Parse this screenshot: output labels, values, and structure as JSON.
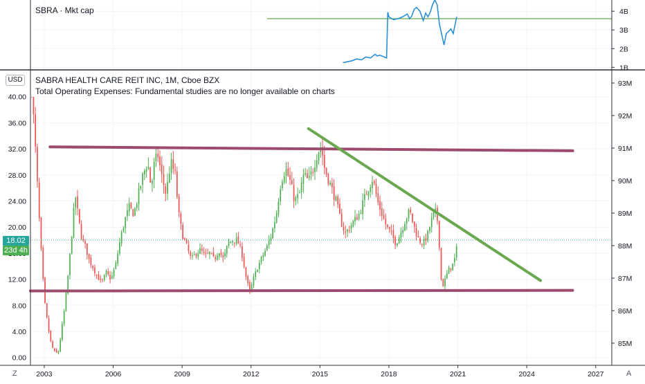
{
  "colors": {
    "up": "#26a69a",
    "up_fill": "#4caf50",
    "down": "#ef5350",
    "grid": "#f0f3fa",
    "axis_text": "#131722",
    "trend_horizontal": "#9c4a6e",
    "trend_diagonal": "#6aa84f",
    "mcap_line": "#2a8fd6",
    "mcap_hline": "#6aa84f",
    "badge_price": "#26a69a",
    "badge_countdown": "#4caf50"
  },
  "top_pane": {
    "title": "SBRA · Mkt cap",
    "y_tick_labels": [
      "4B",
      "3B",
      "2B",
      "1B"
    ]
  },
  "main_pane": {
    "title_line1": "SABRA HEALTH CARE REIT INC, 1M, Cboe BZX",
    "title_line2": "Total Operating Expenses: Fundamental studies are no longer available on charts",
    "currency": "USD",
    "last_price": "18.02",
    "countdown": "23d 4h",
    "corner_left": "Z",
    "corner_right": "A"
  },
  "chart_data": [
    {
      "type": "line",
      "title": "SBRA · Mkt cap",
      "y_unit": "B",
      "ylim": [
        0.9,
        4.6
      ],
      "y_ticks": [
        1,
        2,
        3,
        4
      ],
      "x": [
        2016.0,
        2016.2,
        2016.4,
        2016.6,
        2016.8,
        2017.0,
        2017.2,
        2017.4,
        2017.5,
        2017.6,
        2017.8,
        2017.9,
        2017.95,
        2018.0,
        2018.2,
        2018.4,
        2018.6,
        2018.8,
        2018.9,
        2019.0,
        2019.1,
        2019.2,
        2019.35,
        2019.5,
        2019.6,
        2019.7,
        2019.8,
        2019.9,
        2020.0,
        2020.1,
        2020.2,
        2020.4,
        2020.5,
        2020.7,
        2020.8,
        2020.95
      ],
      "values": [
        1.25,
        1.3,
        1.35,
        1.45,
        1.4,
        1.55,
        1.5,
        1.7,
        1.6,
        1.65,
        1.55,
        1.5,
        3.95,
        3.7,
        3.55,
        3.6,
        3.7,
        3.85,
        3.6,
        3.75,
        4.1,
        4.2,
        4.0,
        3.5,
        3.9,
        3.7,
        3.95,
        4.35,
        4.6,
        4.35,
        3.3,
        2.2,
        2.8,
        3.05,
        2.8,
        3.7
      ],
      "reference_line": 3.6,
      "x_range": [
        2002.4,
        2027.7
      ]
    },
    {
      "type": "candlestick",
      "title": "SABRA HEALTH CARE REIT INC, 1M, Cboe BZX",
      "ylabel": "USD",
      "ylim": [
        -1.2,
        44.0
      ],
      "y_ticks": [
        0,
        4,
        8,
        12,
        16,
        20,
        24,
        28,
        32,
        36,
        40
      ],
      "y_tick_labels": [
        "0.00",
        "4.00",
        "8.00",
        "12.00",
        "16.00",
        "20.00",
        "24.00",
        "28.00",
        "32.00",
        "36.00",
        "40.00"
      ],
      "x_range": [
        2002.4,
        2027.7
      ],
      "x_ticks": [
        2003,
        2006,
        2009,
        2012,
        2015,
        2018,
        2021,
        2024,
        2027
      ],
      "x_tick_labels": [
        "2003",
        "2006",
        "2009",
        "2012",
        "2015",
        "2018",
        "2021",
        "2024",
        "2027"
      ],
      "candle_step_years": 0.0833,
      "close_path": [
        [
          2002.45,
          41.5
        ],
        [
          2002.6,
          33
        ],
        [
          2002.8,
          20
        ],
        [
          2003.0,
          9
        ],
        [
          2003.15,
          5
        ],
        [
          2003.3,
          2
        ],
        [
          2003.45,
          0.8
        ],
        [
          2003.6,
          0.6
        ],
        [
          2003.75,
          4
        ],
        [
          2003.9,
          8
        ],
        [
          2004.05,
          13
        ],
        [
          2004.2,
          19
        ],
        [
          2004.35,
          25
        ],
        [
          2004.5,
          21
        ],
        [
          2004.65,
          18
        ],
        [
          2004.8,
          17
        ],
        [
          2004.95,
          15
        ],
        [
          2005.1,
          14
        ],
        [
          2005.3,
          12.5
        ],
        [
          2005.5,
          11.5
        ],
        [
          2005.7,
          13
        ],
        [
          2005.9,
          12
        ],
        [
          2006.1,
          14
        ],
        [
          2006.3,
          18
        ],
        [
          2006.5,
          21
        ],
        [
          2006.7,
          23
        ],
        [
          2006.9,
          22
        ],
        [
          2007.1,
          25
        ],
        [
          2007.3,
          28
        ],
        [
          2007.5,
          30
        ],
        [
          2007.65,
          26
        ],
        [
          2007.8,
          30
        ],
        [
          2007.95,
          31
        ],
        [
          2008.1,
          28
        ],
        [
          2008.3,
          25
        ],
        [
          2008.5,
          30
        ],
        [
          2008.7,
          28
        ],
        [
          2008.85,
          22
        ],
        [
          2009.0,
          19
        ],
        [
          2009.2,
          17
        ],
        [
          2009.4,
          15
        ],
        [
          2009.6,
          16
        ],
        [
          2009.8,
          16.5
        ],
        [
          2010.0,
          15.5
        ],
        [
          2010.2,
          16
        ],
        [
          2010.4,
          15
        ],
        [
          2010.6,
          16.5
        ],
        [
          2010.8,
          15
        ],
        [
          2011.0,
          17.5
        ],
        [
          2011.2,
          18
        ],
        [
          2011.4,
          18
        ],
        [
          2011.6,
          16
        ],
        [
          2011.8,
          12
        ],
        [
          2011.95,
          10
        ],
        [
          2012.1,
          12
        ],
        [
          2012.3,
          14
        ],
        [
          2012.5,
          15.5
        ],
        [
          2012.7,
          17
        ],
        [
          2012.9,
          19
        ],
        [
          2013.1,
          22
        ],
        [
          2013.3,
          27
        ],
        [
          2013.5,
          29
        ],
        [
          2013.7,
          27
        ],
        [
          2013.9,
          24
        ],
        [
          2014.1,
          25
        ],
        [
          2014.3,
          28
        ],
        [
          2014.5,
          27
        ],
        [
          2014.7,
          29
        ],
        [
          2014.9,
          31.5
        ],
        [
          2015.05,
          32.5
        ],
        [
          2015.2,
          29
        ],
        [
          2015.35,
          27.5
        ],
        [
          2015.5,
          26
        ],
        [
          2015.7,
          24
        ],
        [
          2015.9,
          21
        ],
        [
          2016.1,
          19
        ],
        [
          2016.3,
          20
        ],
        [
          2016.5,
          21
        ],
        [
          2016.7,
          22
        ],
        [
          2016.9,
          24
        ],
        [
          2017.1,
          26
        ],
        [
          2017.3,
          27.5
        ],
        [
          2017.5,
          24
        ],
        [
          2017.7,
          22
        ],
        [
          2017.9,
          20
        ],
        [
          2018.1,
          19
        ],
        [
          2018.3,
          17.5
        ],
        [
          2018.5,
          19
        ],
        [
          2018.7,
          21
        ],
        [
          2018.9,
          22.5
        ],
        [
          2019.1,
          20
        ],
        [
          2019.3,
          18
        ],
        [
          2019.5,
          17.5
        ],
        [
          2019.7,
          19
        ],
        [
          2019.85,
          21
        ],
        [
          2020.0,
          22.5
        ],
        [
          2020.1,
          21.5
        ],
        [
          2020.2,
          17
        ],
        [
          2020.3,
          10.5
        ],
        [
          2020.45,
          12
        ],
        [
          2020.6,
          13.5
        ],
        [
          2020.75,
          14
        ],
        [
          2020.9,
          15.5
        ],
        [
          2021.0,
          18.02
        ]
      ]
    }
  ],
  "drawings": [
    {
      "type": "horizontal-trendline",
      "from": [
        2003.25,
        32.3
      ],
      "to": [
        2026.0,
        31.7
      ]
    },
    {
      "type": "horizontal-trendline",
      "from": [
        2002.4,
        10.2
      ],
      "to": [
        2026.0,
        10.3
      ]
    },
    {
      "type": "diagonal-trendline",
      "from": [
        2014.5,
        35.1
      ],
      "to": [
        2024.6,
        11.8
      ]
    }
  ]
}
